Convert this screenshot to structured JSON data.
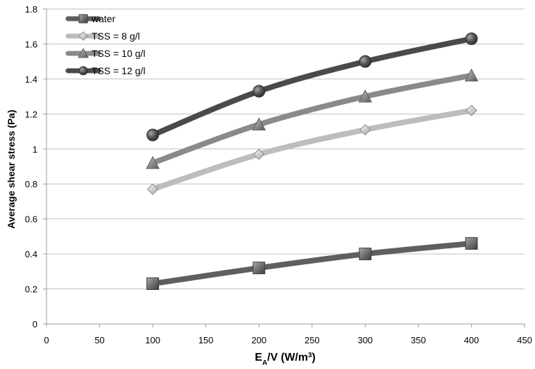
{
  "chart_data": {
    "type": "line",
    "title": "",
    "xlabel": {
      "main": "E",
      "sub": "A",
      "rest": "/V  (W/m",
      "sup": "3",
      "end": ")"
    },
    "ylabel": "Average shear stress (Pa)",
    "xlim": [
      0,
      450
    ],
    "ylim": [
      0,
      1.8
    ],
    "xticks": [
      0,
      50,
      100,
      150,
      200,
      250,
      300,
      350,
      400,
      450
    ],
    "yticks": [
      0,
      0.2,
      0.4,
      0.6,
      0.8,
      1,
      1.2,
      1.4,
      1.6,
      1.8
    ],
    "x": [
      100,
      200,
      300,
      400
    ],
    "grid": "horizontal",
    "legend_position": "top-left",
    "series": [
      {
        "name": "water",
        "values": [
          0.23,
          0.32,
          0.4,
          0.46
        ],
        "marker": "square",
        "color": "#5f5f5f"
      },
      {
        "name": "TSS = 8 g/l",
        "values": [
          0.77,
          0.97,
          1.11,
          1.22
        ],
        "marker": "diamond",
        "color": "#bdbdbd"
      },
      {
        "name": "TSS = 10 g/l",
        "values": [
          0.92,
          1.14,
          1.3,
          1.42
        ],
        "marker": "triangle",
        "color": "#8a8a8a"
      },
      {
        "name": "TSS = 12 g/l",
        "values": [
          1.08,
          1.33,
          1.5,
          1.63
        ],
        "marker": "circle",
        "color": "#4a4a4a"
      }
    ]
  }
}
